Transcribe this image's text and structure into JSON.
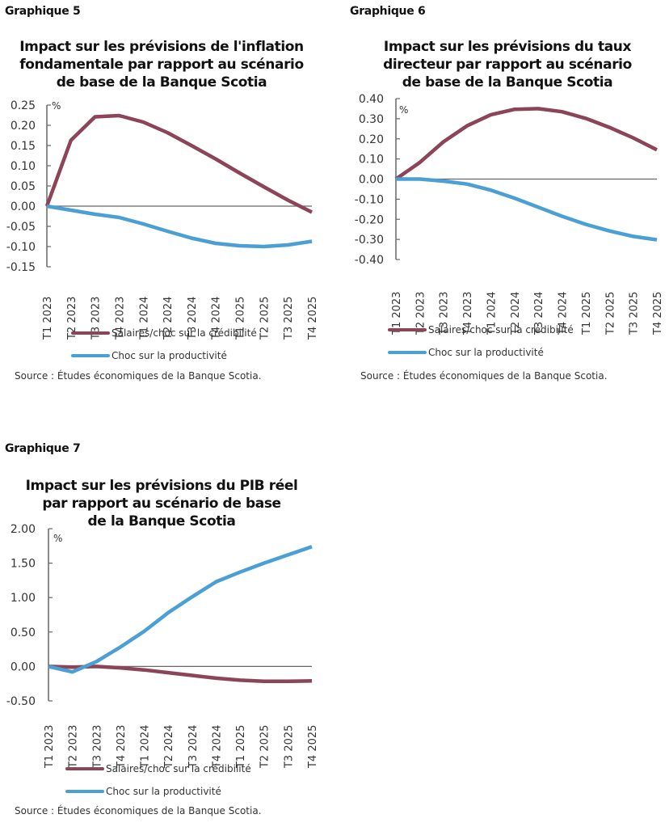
{
  "colors": {
    "credibility": "#8B4458",
    "productivity": "#4A9FD5",
    "axis": "#666666"
  },
  "legend": {
    "credibility": "Salaires/choc sur la crédibilité",
    "productivity": "Choc sur la productivité"
  },
  "source": "Source : Études économiques de la Banque Scotia.",
  "unit": "%",
  "charts": [
    {
      "label": "Graphique 5",
      "title_lines": [
        "Impact sur les prévisions de l'inflation",
        "fondamentale par rapport au scénario",
        "de base de la Banque Scotia"
      ]
    },
    {
      "label": "Graphique 6",
      "title_lines": [
        "Impact sur les prévisions du taux",
        "directeur par rapport au scénario",
        "de base de la Banque Scotia"
      ]
    },
    {
      "label": "Graphique 7",
      "title_lines": [
        "Impact sur les prévisions du PIB réel",
        "par rapport au scénario de base",
        "de la Banque Scotia"
      ]
    }
  ],
  "chart_data": [
    {
      "type": "line",
      "title": "Impact sur les prévisions de l'inflation fondamentale par rapport au scénario de base de la Banque Scotia",
      "xlabel": "",
      "ylabel": "%",
      "categories": [
        "T1 2023",
        "T2 2023",
        "T3 2023",
        "T4 2023",
        "T1 2024",
        "T2 2024",
        "T3 2024",
        "T4 2024",
        "T1 2025",
        "T2 2025",
        "T3 2025",
        "T4 2025"
      ],
      "ylim": [
        -0.15,
        0.25
      ],
      "yticks": [
        0.25,
        0.2,
        0.15,
        0.1,
        0.05,
        0.0,
        -0.05,
        -0.1,
        -0.15
      ],
      "ytick_labels": [
        "0.25",
        "0.20",
        "0.15",
        "0.10",
        "0.05",
        "0.00",
        "-0.05",
        "-0.10",
        "-0.15"
      ],
      "series": [
        {
          "name": "Salaires/choc sur la crédibilité",
          "color": "#8B4458",
          "values": [
            0.0,
            0.163,
            0.221,
            0.224,
            0.208,
            0.182,
            0.15,
            0.117,
            0.082,
            0.048,
            0.015,
            -0.015
          ]
        },
        {
          "name": "Choc sur la productivité",
          "color": "#4A9FD5",
          "values": [
            0.0,
            -0.01,
            -0.02,
            -0.028,
            -0.044,
            -0.062,
            -0.079,
            -0.092,
            -0.098,
            -0.1,
            -0.096,
            -0.087
          ]
        }
      ],
      "legend_position": "bottom",
      "grid": false
    },
    {
      "type": "line",
      "title": "Impact sur les prévisions du taux directeur par rapport au scénario de base de la Banque Scotia",
      "xlabel": "",
      "ylabel": "%",
      "categories": [
        "T1 2023",
        "T2 2023",
        "T3 2023",
        "T4 2023",
        "T1 2024",
        "T2 2024",
        "T3 2024",
        "T4 2024",
        "T1 2025",
        "T2 2025",
        "T3 2025",
        "T4 2025"
      ],
      "ylim": [
        -0.4,
        0.4
      ],
      "yticks": [
        0.4,
        0.3,
        0.2,
        0.1,
        0.0,
        -0.1,
        -0.2,
        -0.3,
        -0.4
      ],
      "ytick_labels": [
        "0.40",
        "0.30",
        "0.20",
        "0.10",
        "0.00",
        "-0.10",
        "-0.20",
        "-0.30",
        "-0.40"
      ],
      "series": [
        {
          "name": "Salaires/choc sur la crédibilité",
          "color": "#8B4458",
          "values": [
            0.0,
            0.082,
            0.185,
            0.265,
            0.32,
            0.347,
            0.35,
            0.335,
            0.302,
            0.257,
            0.205,
            0.145
          ]
        },
        {
          "name": "Choc sur la productivité",
          "color": "#4A9FD5",
          "values": [
            0.0,
            0.0,
            -0.01,
            -0.025,
            -0.055,
            -0.095,
            -0.14,
            -0.185,
            -0.225,
            -0.258,
            -0.285,
            -0.302
          ]
        }
      ],
      "legend_position": "bottom",
      "grid": false
    },
    {
      "type": "line",
      "title": "Impact sur les prévisions du PIB réel par rapport au scénario de base de la Banque Scotia",
      "xlabel": "",
      "ylabel": "%",
      "categories": [
        "T1 2023",
        "T2 2023",
        "T3 2023",
        "T4 2023",
        "T1 2024",
        "T2 2024",
        "T3 2024",
        "T4 2024",
        "T1 2025",
        "T2 2025",
        "T3 2025",
        "T4 2025"
      ],
      "ylim": [
        -0.5,
        2.0
      ],
      "yticks": [
        2.0,
        1.5,
        1.0,
        0.5,
        0.0,
        -0.5
      ],
      "ytick_labels": [
        "2.00",
        "1.50",
        "1.00",
        "0.50",
        "0.00",
        "-0.50"
      ],
      "series": [
        {
          "name": "Salaires/choc sur la crédibilité",
          "color": "#8B4458",
          "values": [
            0.0,
            -0.01,
            0.0,
            -0.02,
            -0.05,
            -0.09,
            -0.13,
            -0.17,
            -0.2,
            -0.215,
            -0.215,
            -0.21
          ]
        },
        {
          "name": "Choc sur la productivité",
          "color": "#4A9FD5",
          "values": [
            0.0,
            -0.08,
            0.07,
            0.28,
            0.51,
            0.78,
            1.01,
            1.23,
            1.37,
            1.5,
            1.62,
            1.74
          ]
        }
      ],
      "legend_position": "bottom",
      "grid": false
    }
  ]
}
